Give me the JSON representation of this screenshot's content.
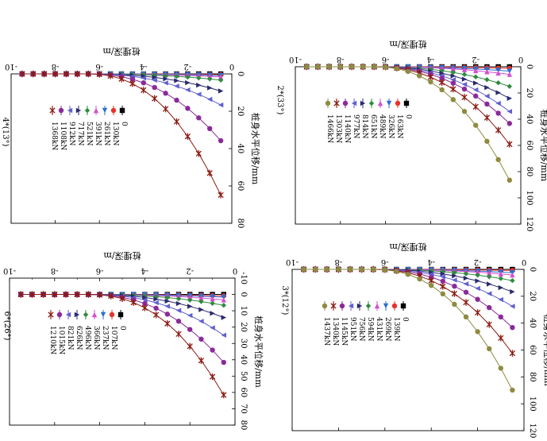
{
  "chart_data": [
    {
      "type": "line",
      "panel_label": "2*(33°)",
      "xlabel": "桩埋深/m",
      "ylabel": "桩身水平位移/mm",
      "xlim": [
        -10,
        0
      ],
      "ylim": [
        0,
        120
      ],
      "xticks": [
        "-10",
        "-8",
        "-6",
        "-4",
        "-2",
        "0"
      ],
      "yticks": [
        "0",
        "20",
        "40",
        "60",
        "80",
        "100",
        "120"
      ],
      "x": [
        -9.5,
        -9,
        -8.5,
        -8,
        -7.5,
        -7,
        -6.5,
        -6,
        -5.5,
        -5,
        -4.5,
        -4,
        -3.5,
        -3,
        -2.5,
        -2,
        -1.5,
        -1,
        -0.5
      ],
      "series": [
        {
          "name": "0",
          "color": "#000000",
          "marker": "square",
          "ymax": 0
        },
        {
          "name": "163kN",
          "color": "#e8322b",
          "marker": "circle",
          "ymax": 1.5
        },
        {
          "name": "326kN",
          "color": "#2a6fd6",
          "marker": "triangle-down",
          "ymax": 4
        },
        {
          "name": "489kN",
          "color": "#d24fd0",
          "marker": "triangle-up",
          "ymax": 7
        },
        {
          "name": "651kN",
          "color": "#2e8b3e",
          "marker": "diamond",
          "ymax": 18
        },
        {
          "name": "814kN",
          "color": "#2a2a6e",
          "marker": "triangle-right",
          "ymax": 29
        },
        {
          "name": "977kN",
          "color": "#6060d0",
          "marker": "triangle-left",
          "ymax": 41
        },
        {
          "name": "1140kN",
          "color": "#8a2a9a",
          "marker": "circle",
          "ymax": 52
        },
        {
          "name": "1303kN",
          "color": "#8b1a12",
          "marker": "star",
          "ymax": 71
        },
        {
          "name": "1466kN",
          "color": "#8e8b40",
          "marker": "circle",
          "ymax": 104
        }
      ]
    },
    {
      "type": "line",
      "panel_label": "4*(13°)",
      "xlabel": "桩埋深/m",
      "ylabel": "桩身水平位移/mm",
      "xlim": [
        -10,
        0
      ],
      "ylim": [
        0,
        80
      ],
      "xticks": [
        "-10",
        "-8",
        "-6",
        "-4",
        "-2",
        "0"
      ],
      "yticks": [
        "0",
        "20",
        "40",
        "60",
        "80"
      ],
      "x": [
        -9.5,
        -9,
        -8.5,
        -8,
        -7.5,
        -7,
        -6.5,
        -6,
        -5.5,
        -5,
        -4.5,
        -4,
        -3.5,
        -3,
        -2.5,
        -2,
        -1.5,
        -1,
        -0.5
      ],
      "series": [
        {
          "name": "0",
          "color": "#000000",
          "marker": "square",
          "ymax": 0
        },
        {
          "name": "130kN",
          "color": "#e8322b",
          "marker": "circle",
          "ymax": 0.5
        },
        {
          "name": "261kN",
          "color": "#2a6fd6",
          "marker": "triangle-down",
          "ymax": 1
        },
        {
          "name": "391kN",
          "color": "#d24fd0",
          "marker": "triangle-up",
          "ymax": 2
        },
        {
          "name": "521kN",
          "color": "#2e8b3e",
          "marker": "diamond",
          "ymax": 4
        },
        {
          "name": "717kN",
          "color": "#2a2a6e",
          "marker": "triangle-right",
          "ymax": 11
        },
        {
          "name": "912kN",
          "color": "#6060d0",
          "marker": "triangle-left",
          "ymax": 20
        },
        {
          "name": "1108kN",
          "color": "#8a2a9a",
          "marker": "circle",
          "ymax": 43
        },
        {
          "name": "1368kN",
          "color": "#8b1a12",
          "marker": "star",
          "ymax": 78
        }
      ]
    },
    {
      "type": "line",
      "panel_label": "3*(12°)",
      "xlabel": "桩埋深/m",
      "ylabel": "桩身水平位移/mm",
      "xlim": [
        -10,
        0
      ],
      "ylim": [
        0,
        120
      ],
      "xticks": [
        "-10",
        "-8",
        "-6",
        "-4",
        "-2",
        "0"
      ],
      "yticks": [
        "0",
        "20",
        "40",
        "60",
        "80",
        "100",
        "120"
      ],
      "x": [
        -9.5,
        -9,
        -8.5,
        -8,
        -7.5,
        -7,
        -6.5,
        -6,
        -5.5,
        -5,
        -4.5,
        -4,
        -3.5,
        -3,
        -2.5,
        -2,
        -1.5,
        -1,
        -0.5
      ],
      "series": [
        {
          "name": "0",
          "color": "#000000",
          "marker": "square",
          "ymax": 0
        },
        {
          "name": "139kN",
          "color": "#e8322b",
          "marker": "circle",
          "ymax": 1
        },
        {
          "name": "269kN",
          "color": "#2a6fd6",
          "marker": "triangle-down",
          "ymax": 3
        },
        {
          "name": "431kN",
          "color": "#d24fd0",
          "marker": "triangle-up",
          "ymax": 5
        },
        {
          "name": "594kN",
          "color": "#2e8b3e",
          "marker": "diamond",
          "ymax": 10
        },
        {
          "name": "756kN",
          "color": "#2a2a6e",
          "marker": "triangle-right",
          "ymax": 20
        },
        {
          "name": "951kN",
          "color": "#6060d0",
          "marker": "triangle-left",
          "ymax": 33
        },
        {
          "name": "1145kN",
          "color": "#8a2a9a",
          "marker": "circle",
          "ymax": 52
        },
        {
          "name": "1340kN",
          "color": "#8b1a12",
          "marker": "star",
          "ymax": 75
        },
        {
          "name": "1437kN",
          "color": "#8e8b40",
          "marker": "circle",
          "ymax": 108
        }
      ]
    },
    {
      "type": "line",
      "panel_label": "6*(26°)",
      "xlabel": "桩埋深/m",
      "ylabel": "桩身水平位移/mm",
      "xlim": [
        -10,
        0
      ],
      "ylim": [
        -10,
        80
      ],
      "xticks": [
        "-10",
        "-8",
        "-6",
        "-4",
        "-2",
        "0"
      ],
      "yticks": [
        "-10",
        "0",
        "10",
        "20",
        "30",
        "40",
        "50",
        "60",
        "70",
        "80"
      ],
      "x": [
        -9.5,
        -9,
        -8.5,
        -8,
        -7.5,
        -7,
        -6.5,
        -6,
        -5.5,
        -5,
        -4.5,
        -4,
        -3.5,
        -3,
        -2.5,
        -2,
        -1.5,
        -1,
        -0.5
      ],
      "series": [
        {
          "name": "0",
          "color": "#000000",
          "marker": "square",
          "ymax": 0
        },
        {
          "name": "107kN",
          "color": "#e8322b",
          "marker": "circle",
          "ymax": 1
        },
        {
          "name": "237kN",
          "color": "#2a6fd6",
          "marker": "triangle-down",
          "ymax": 2
        },
        {
          "name": "366kN",
          "color": "#d24fd0",
          "marker": "triangle-up",
          "ymax": 4
        },
        {
          "name": "496kN",
          "color": "#2e8b3e",
          "marker": "diamond",
          "ymax": 8
        },
        {
          "name": "626kN",
          "color": "#2a2a6e",
          "marker": "triangle-right",
          "ymax": 17
        },
        {
          "name": "821kN",
          "color": "#6060d0",
          "marker": "triangle-left",
          "ymax": 30
        },
        {
          "name": "1015kN",
          "color": "#8a2a9a",
          "marker": "circle",
          "ymax": 50
        },
        {
          "name": "1210kN",
          "color": "#8b1a12",
          "marker": "star",
          "ymax": 74
        }
      ]
    }
  ]
}
